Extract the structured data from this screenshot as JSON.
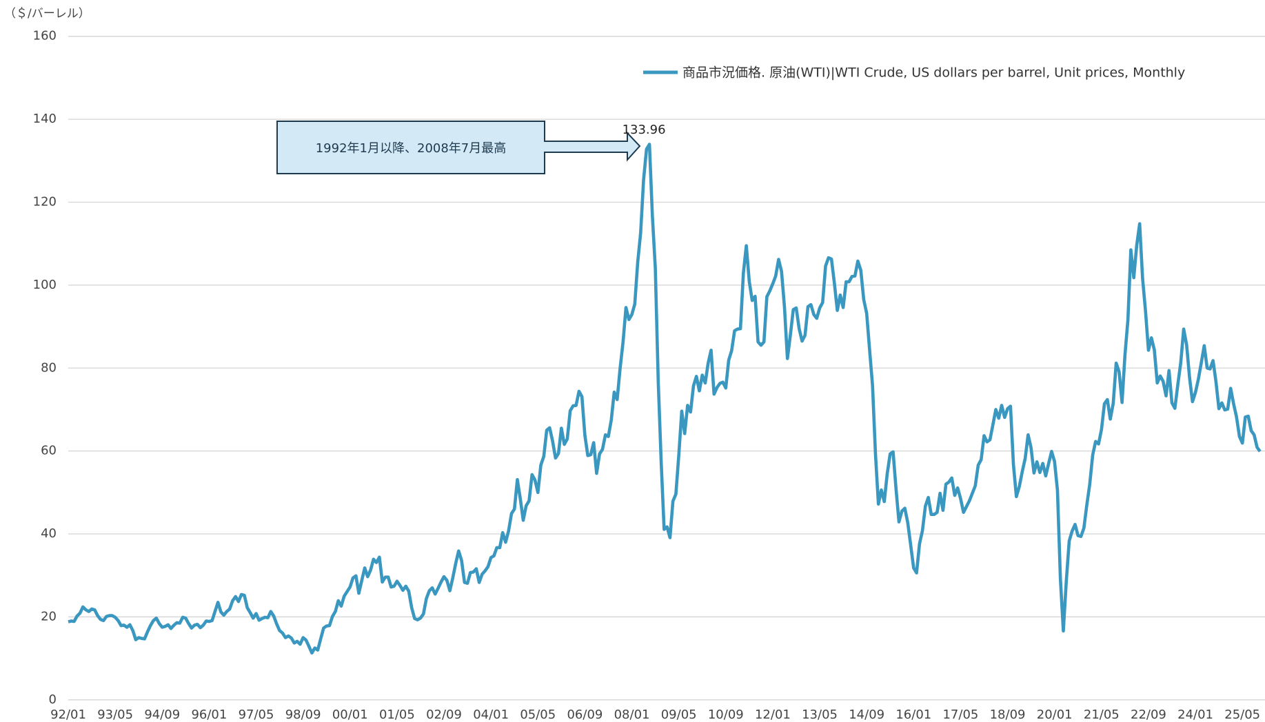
{
  "chart_data": {
    "type": "line",
    "y_axis_label": "（＄/バーレル）",
    "annotation": "1992年1月以降、2008年7月最高",
    "annotation_index": 198,
    "categories": [
      "92/01",
      null,
      null,
      null,
      null,
      null,
      null,
      null,
      null,
      null,
      null,
      null,
      null,
      null,
      null,
      null,
      "93/05",
      null,
      null,
      null,
      null,
      null,
      null,
      null,
      null,
      null,
      null,
      null,
      null,
      null,
      null,
      null,
      "94/09",
      null,
      null,
      null,
      null,
      null,
      null,
      null,
      null,
      null,
      null,
      null,
      null,
      null,
      null,
      null,
      "96/01",
      null,
      null,
      null,
      null,
      null,
      null,
      null,
      null,
      null,
      null,
      null,
      null,
      null,
      null,
      null,
      "97/05",
      null,
      null,
      null,
      null,
      null,
      null,
      null,
      null,
      null,
      null,
      null,
      null,
      null,
      null,
      null,
      "98/09",
      null,
      null,
      null,
      null,
      null,
      null,
      null,
      null,
      null,
      null,
      null,
      null,
      null,
      null,
      null,
      "00/01",
      null,
      null,
      null,
      null,
      null,
      null,
      null,
      null,
      null,
      null,
      null,
      null,
      null,
      null,
      null,
      "01/05",
      null,
      null,
      null,
      null,
      null,
      null,
      null,
      null,
      null,
      null,
      null,
      null,
      null,
      null,
      null,
      "02/09",
      null,
      null,
      null,
      null,
      null,
      null,
      null,
      null,
      null,
      null,
      null,
      null,
      null,
      null,
      null,
      "04/01",
      null,
      null,
      null,
      null,
      null,
      null,
      null,
      null,
      null,
      null,
      null,
      null,
      null,
      null,
      null,
      "05/05",
      null,
      null,
      null,
      null,
      null,
      null,
      null,
      null,
      null,
      null,
      null,
      null,
      null,
      null,
      null,
      "06/09",
      null,
      null,
      null,
      null,
      null,
      null,
      null,
      null,
      null,
      null,
      null,
      null,
      null,
      null,
      null,
      "08/01",
      null,
      null,
      null,
      null,
      null,
      null,
      null,
      null,
      null,
      null,
      null,
      null,
      null,
      null,
      null,
      "09/05",
      null,
      null,
      null,
      null,
      null,
      null,
      null,
      null,
      null,
      null,
      null,
      null,
      null,
      null,
      null,
      "10/09",
      null,
      null,
      null,
      null,
      null,
      null,
      null,
      null,
      null,
      null,
      null,
      null,
      null,
      null,
      null,
      "12/01",
      null,
      null,
      null,
      null,
      null,
      null,
      null,
      null,
      null,
      null,
      null,
      null,
      null,
      null,
      null,
      "13/05",
      null,
      null,
      null,
      null,
      null,
      null,
      null,
      null,
      null,
      null,
      null,
      null,
      null,
      null,
      null,
      "14/09",
      null,
      null,
      null,
      null,
      null,
      null,
      null,
      null,
      null,
      null,
      null,
      null,
      null,
      null,
      null,
      "16/01",
      null,
      null,
      null,
      null,
      null,
      null,
      null,
      null,
      null,
      null,
      null,
      null,
      null,
      null,
      null,
      "17/05",
      null,
      null,
      null,
      null,
      null,
      null,
      null,
      null,
      null,
      null,
      null,
      null,
      null,
      null,
      null,
      "18/09",
      null,
      null,
      null,
      null,
      null,
      null,
      null,
      null,
      null,
      null,
      null,
      null,
      null,
      null,
      null,
      "20/01",
      null,
      null,
      null,
      null,
      null,
      null,
      null,
      null,
      null,
      null,
      null,
      null,
      null,
      null,
      null,
      "21/05",
      null,
      null,
      null,
      null,
      null,
      null,
      null,
      null,
      null,
      null,
      null,
      null,
      null,
      null,
      null,
      "22/09",
      null,
      null,
      null,
      null,
      null,
      null,
      null,
      null,
      null,
      null,
      null,
      null,
      null,
      null,
      null,
      "24/01",
      null,
      null,
      null,
      null,
      null,
      null,
      null,
      null,
      null,
      null,
      null,
      null,
      null,
      null,
      null,
      "25/05",
      null,
      null,
      null,
      null,
      null,
      null
    ],
    "series": [
      {
        "name": "商品市況価格. 原油(WTI)|WTI Crude, US dollars per barrel, Unit prices, Monthly",
        "color": "#3a97bf",
        "values": [
          18.8,
          19.0,
          18.9,
          20.2,
          20.9,
          22.4,
          21.7,
          21.3,
          21.9,
          21.7,
          20.3,
          19.4,
          19.1,
          20.1,
          20.3,
          20.3,
          19.9,
          19.1,
          17.9,
          18.0,
          17.5,
          18.1,
          16.7,
          14.5,
          15.0,
          14.8,
          14.7,
          16.4,
          17.9,
          19.1,
          19.7,
          18.4,
          17.5,
          17.7,
          18.1,
          17.2,
          18.0,
          18.6,
          18.5,
          19.9,
          19.7,
          18.4,
          17.3,
          18.0,
          18.2,
          17.4,
          18.0,
          19.0,
          18.9,
          19.1,
          21.3,
          23.5,
          21.2,
          20.4,
          21.3,
          21.9,
          23.9,
          24.9,
          23.7,
          25.4,
          25.2,
          22.2,
          21.0,
          19.7,
          20.8,
          19.2,
          19.6,
          19.9,
          19.8,
          21.3,
          20.2,
          18.3,
          16.7,
          16.1,
          15.0,
          15.4,
          14.9,
          13.7,
          14.1,
          13.4,
          15.0,
          14.4,
          12.9,
          11.3,
          12.5,
          12.0,
          14.7,
          17.3,
          17.8,
          17.9,
          20.1,
          21.3,
          23.9,
          22.6,
          25.0,
          26.1,
          27.2,
          29.4,
          29.9,
          25.7,
          28.8,
          31.8,
          29.7,
          31.3,
          33.9,
          33.1,
          34.4,
          28.4,
          29.6,
          29.6,
          27.2,
          27.4,
          28.6,
          27.6,
          26.4,
          27.4,
          26.2,
          22.2,
          19.6,
          19.3,
          19.7,
          20.7,
          24.4,
          26.3,
          27.0,
          25.5,
          26.9,
          28.4,
          29.7,
          28.8,
          26.3,
          29.4,
          32.9,
          35.9,
          33.6,
          28.3,
          28.1,
          30.7,
          30.8,
          31.6,
          28.3,
          30.3,
          31.1,
          32.1,
          34.3,
          34.7,
          36.7,
          36.7,
          40.3,
          38.0,
          40.7,
          44.9,
          46.0,
          53.1,
          48.5,
          43.3,
          46.8,
          48.0,
          54.3,
          53.0,
          50.0,
          56.6,
          58.7,
          65.0,
          65.6,
          62.4,
          58.3,
          59.4,
          65.5,
          61.6,
          62.9,
          69.7,
          70.9,
          71.0,
          74.4,
          73.1,
          63.8,
          58.9,
          59.1,
          62.0,
          54.6,
          59.3,
          60.4,
          63.9,
          63.5,
          67.5,
          74.2,
          72.4,
          79.9,
          86.2,
          94.6,
          91.7,
          92.9,
          95.4,
          105.5,
          112.6,
          125.4,
          132.8,
          133.96,
          116.7,
          104.1,
          76.6,
          57.3,
          41.1,
          41.7,
          39.1,
          47.9,
          49.6,
          59.0,
          69.6,
          64.2,
          71.0,
          69.4,
          75.7,
          78.0,
          74.5,
          78.3,
          76.4,
          81.2,
          84.3,
          73.7,
          75.3,
          76.3,
          76.6,
          75.2,
          81.9,
          84.2,
          89.0,
          89.4,
          89.5,
          102.9,
          109.5,
          100.9,
          96.3,
          97.3,
          86.3,
          85.5,
          86.3,
          97.2,
          98.6,
          100.3,
          102.2,
          106.2,
          103.3,
          94.7,
          82.3,
          87.9,
          94.1,
          94.5,
          89.5,
          86.5,
          87.9,
          94.8,
          95.3,
          92.9,
          92.0,
          94.5,
          95.8,
          104.6,
          106.6,
          106.3,
          100.5,
          93.9,
          97.6,
          94.6,
          100.8,
          100.8,
          102.1,
          102.2,
          105.8,
          103.6,
          96.5,
          93.2,
          84.4,
          75.8,
          59.3,
          47.2,
          50.6,
          47.8,
          54.5,
          59.3,
          59.8,
          50.9,
          42.9,
          45.5,
          46.2,
          42.7,
          37.3,
          31.8,
          30.6,
          37.6,
          40.8,
          46.7,
          48.8,
          44.7,
          44.7,
          45.2,
          49.8,
          45.7,
          52.0,
          52.5,
          53.5,
          49.3,
          51.1,
          48.5,
          45.2,
          46.6,
          48.0,
          49.8,
          51.6,
          56.6,
          57.9,
          63.7,
          62.2,
          62.7,
          66.3,
          70.0,
          67.9,
          71.0,
          68.1,
          70.2,
          70.8,
          56.7,
          49.0,
          51.4,
          55.0,
          58.2,
          63.9,
          60.8,
          54.7,
          57.4,
          54.8,
          57.0,
          54.0,
          57.0,
          59.9,
          57.5,
          50.5,
          29.2,
          16.6,
          28.5,
          38.3,
          40.7,
          42.3,
          39.6,
          39.4,
          41.4,
          47.0,
          52.0,
          59.0,
          62.3,
          61.7,
          65.2,
          71.4,
          72.4,
          67.7,
          71.5,
          81.2,
          79.1,
          71.7,
          83.2,
          91.6,
          108.5,
          101.8,
          109.6,
          114.8,
          101.6,
          93.7,
          84.3,
          87.3,
          84.4,
          76.4,
          78.1,
          76.8,
          73.3,
          79.4,
          71.6,
          70.3,
          76.0,
          81.3,
          89.4,
          85.6,
          77.7,
          71.9,
          74.1,
          77.3,
          81.3,
          85.4,
          80.0,
          79.8,
          81.8,
          76.7,
          70.2,
          71.6,
          69.9,
          70.1,
          75.1,
          71.4,
          68.2,
          63.5,
          61.9,
          68.2,
          68.4,
          64.9,
          63.9,
          60.9,
          59.9
        ]
      }
    ],
    "ylim": [
      0,
      160
    ],
    "yticks": [
      0,
      20,
      40,
      60,
      80,
      100,
      120,
      140,
      160
    ],
    "grid": true,
    "legend": "top-right"
  }
}
